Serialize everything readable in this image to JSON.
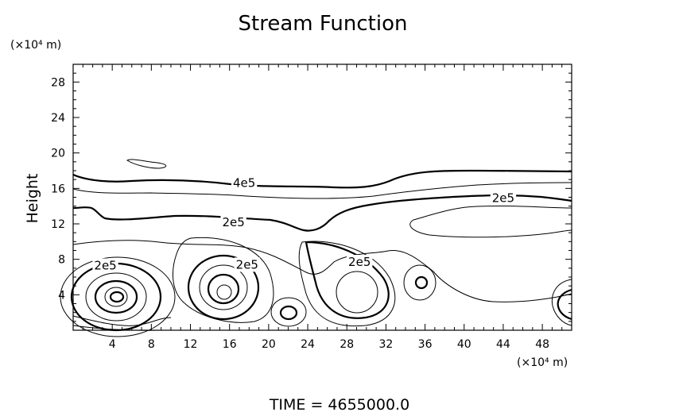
{
  "chart_data": {
    "type": "contour",
    "title": "Stream Function",
    "ylabel": "Height",
    "xunit": "(×10⁴ m)",
    "yunit": "(×10⁴ m)",
    "xlim": [
      0,
      51
    ],
    "ylim": [
      0,
      30
    ],
    "xticks": [
      4,
      8,
      12,
      16,
      20,
      24,
      28,
      32,
      36,
      40,
      44,
      48
    ],
    "yticks": [
      4,
      8,
      12,
      16,
      20,
      24,
      28
    ],
    "contour_labels": [
      {
        "text": "4e5",
        "x": 17.5,
        "y": 16.6
      },
      {
        "text": "2e5",
        "x": 44.0,
        "y": 14.9
      },
      {
        "text": "2e5",
        "x": 16.4,
        "y": 12.2
      },
      {
        "text": "2e5",
        "x": 3.3,
        "y": 7.3
      },
      {
        "text": "2e5",
        "x": 17.8,
        "y": 7.4
      },
      {
        "text": "2e5",
        "x": 29.3,
        "y": 7.7
      }
    ],
    "footer": "TIME  =  4655000.0"
  }
}
